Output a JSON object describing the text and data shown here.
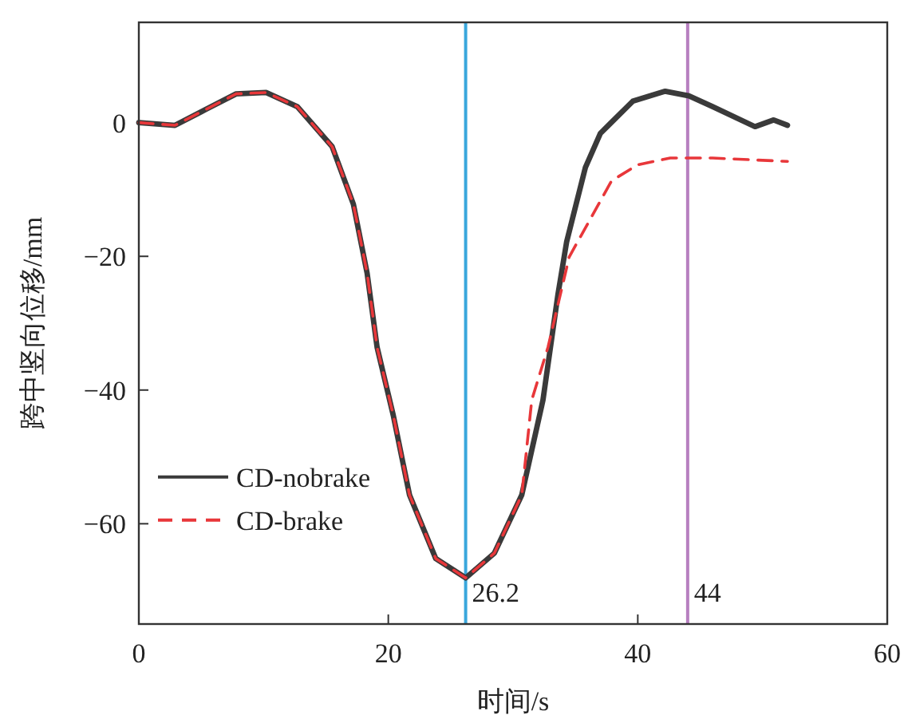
{
  "chart_data": {
    "type": "line",
    "xlabel": "时间/s",
    "ylabel": "跨中竖向位移/mm",
    "xlim": [
      0,
      60
    ],
    "xticks": [
      0,
      20,
      40,
      60
    ],
    "ylim": [
      -75,
      15
    ],
    "yticks": [
      0,
      -20,
      -40,
      -60
    ],
    "legend": "bottom left",
    "grid": false,
    "series": [
      {
        "name": "CD-nobrake",
        "color": "#3a3a3a",
        "line_style": "solid",
        "x": [
          0,
          2.9,
          5.5,
          7.8,
          10.2,
          12.7,
          15.5,
          17.2,
          18.3,
          19.1,
          20.4,
          21.7,
          23.8,
          26.2,
          28.5,
          30.7,
          32.4,
          33.6,
          34.3,
          35.8,
          37.0,
          39.6,
          42.2,
          44.1,
          46.0,
          49.4,
          50.9,
          52.0
        ],
        "values": [
          0,
          -0.4,
          2.1,
          4.3,
          4.5,
          2.4,
          -3.6,
          -12.2,
          -22.5,
          -33.6,
          -43.8,
          -55.7,
          -65.2,
          -68.1,
          -64.4,
          -55.7,
          -41.5,
          -25.7,
          -17.8,
          -6.7,
          -1.6,
          3.2,
          4.7,
          4.0,
          2.4,
          -0.6,
          0.4,
          -0.4
        ]
      },
      {
        "name": "CD-brake",
        "color": "#e8373a",
        "line_style": "dashed",
        "x": [
          0,
          2.9,
          5.5,
          7.8,
          10.2,
          12.7,
          15.5,
          17.2,
          18.3,
          19.1,
          20.4,
          21.7,
          23.8,
          26.2,
          28.5,
          30.7,
          31.5,
          32.8,
          34.5,
          37.9,
          40.0,
          42.6,
          46.0,
          52.0
        ],
        "values": [
          0,
          -0.4,
          2.1,
          4.3,
          4.5,
          2.4,
          -3.6,
          -12.2,
          -22.5,
          -33.6,
          -43.8,
          -55.7,
          -65.2,
          -68.1,
          -64.4,
          -55.7,
          -41.5,
          -33.6,
          -20.1,
          -8.7,
          -6.3,
          -5.3,
          -5.3,
          -5.8
        ]
      }
    ],
    "ref_lines": [
      {
        "axis": "x",
        "value": 26.2,
        "label": "26.2",
        "color": "#3aa7dc"
      },
      {
        "axis": "x",
        "value": 44,
        "label": "44",
        "color": "#b77fc0"
      }
    ]
  }
}
